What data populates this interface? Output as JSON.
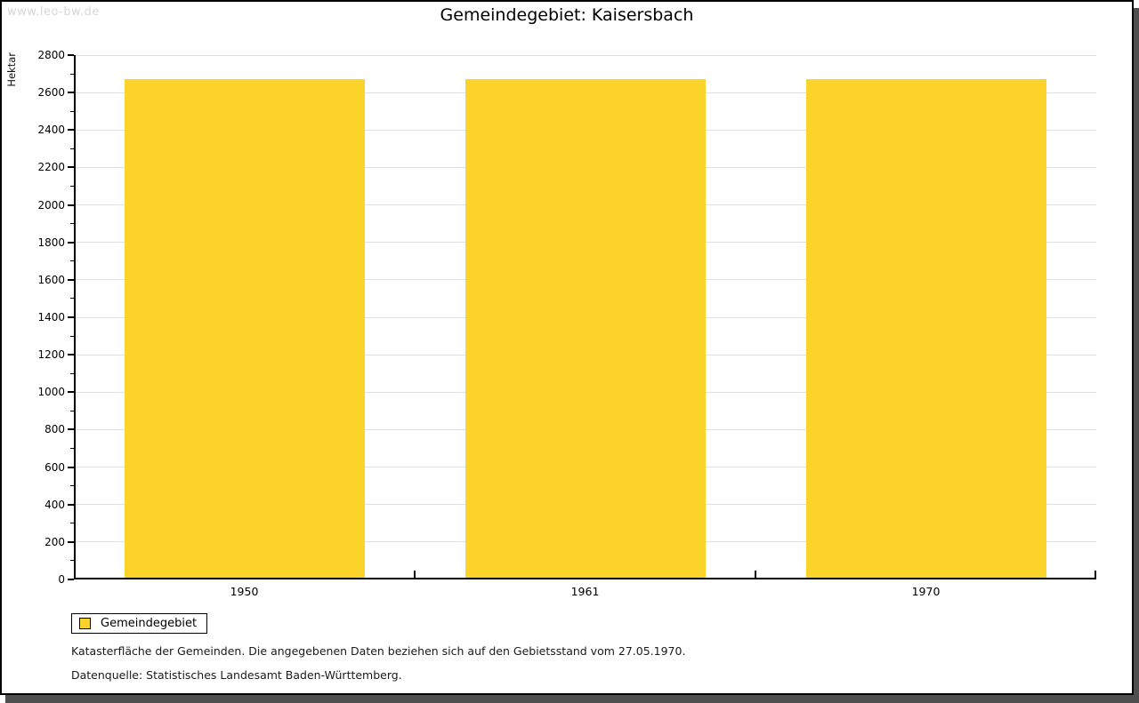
{
  "watermark": "www.leo-bw.de",
  "title": "Gemeindegebiet: Kaisersbach",
  "chart_data": {
    "type": "bar",
    "title": "Gemeindegebiet: Kaisersbach",
    "categories": [
      "1950",
      "1961",
      "1970"
    ],
    "values": [
      2672,
      2672,
      2672
    ],
    "series_name": "Gemeindegebiet",
    "xlabel": "",
    "ylabel": "Hektar",
    "ylim": [
      0,
      2800
    ],
    "y_major_step": 200,
    "y_minor_step": 100,
    "grid": "horizontal-major-only",
    "legend_position": "bottom-left",
    "bar_color": "#fcd32b",
    "gridline_color": "#e0e0e0",
    "legend": [
      {
        "label": "Gemeindegebiet",
        "color": "#fcd32b"
      }
    ]
  },
  "footer": {
    "line1": "Katasterfläche der Gemeinden. Die angegebenen Daten beziehen sich auf den Gebietsstand vom 27.05.1970.",
    "line2": "Datenquelle: Statistisches Landesamt Baden-Württemberg."
  }
}
